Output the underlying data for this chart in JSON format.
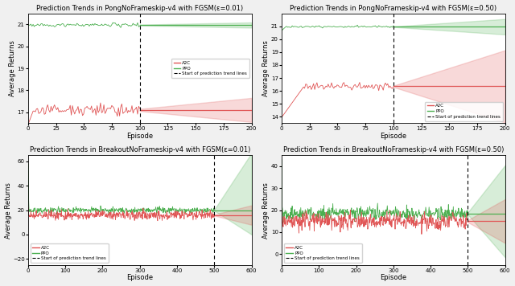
{
  "subplots": [
    {
      "title": "Prediction Trends in PongNoFrameskip-v4 with FGSM(ε=0.01)",
      "xlabel": "Episode",
      "ylabel": "Average Returns",
      "xlim": [
        0,
        200
      ],
      "ylim": [
        16.5,
        21.5
      ],
      "yticks": [
        17,
        18,
        19,
        20,
        21
      ],
      "xticks": [
        0,
        25,
        50,
        75,
        100,
        125,
        150,
        175,
        200
      ],
      "vline": 100,
      "a2c_color": "#e05555",
      "ppo_color": "#4caf50",
      "a2c_mean": 17.1,
      "a2c_noise": 0.15,
      "a2c_seed": 11,
      "a2c_band_start": 0.05,
      "a2c_band_end_up": 0.55,
      "a2c_band_end_down": 0.55,
      "ppo_mean": 20.97,
      "ppo_noise": 0.04,
      "ppo_seed": 21,
      "ppo_band_start": 0.02,
      "ppo_band_end_up": 0.12,
      "ppo_band_end_down": 0.12,
      "a2c_init_low": 16.5,
      "a2c_init_steps": 5,
      "ppo_init_low": null,
      "ppo_init_steps": 0,
      "legend_loc": "center right",
      "legend_bbox": null
    },
    {
      "title": "Prediction Trends in PongNoFrameskip-v4 with FGSM(ε=0.50)",
      "xlabel": "Episode",
      "ylabel": "Average Returns",
      "xlim": [
        0,
        200
      ],
      "ylim": [
        13.5,
        22.0
      ],
      "yticks": [
        14,
        15,
        16,
        17,
        18,
        19,
        20,
        21
      ],
      "xticks": [
        0,
        25,
        50,
        75,
        100,
        125,
        150,
        175,
        200
      ],
      "vline": 100,
      "a2c_color": "#e05555",
      "ppo_color": "#4caf50",
      "a2c_mean": 16.35,
      "a2c_noise": 0.15,
      "a2c_seed": 13,
      "a2c_band_start": 0.05,
      "a2c_band_end_up": 2.8,
      "a2c_band_end_down": 2.8,
      "ppo_mean": 20.97,
      "ppo_noise": 0.04,
      "ppo_seed": 23,
      "ppo_band_start": 0.02,
      "ppo_band_end_up": 0.6,
      "ppo_band_end_down": 0.6,
      "a2c_init_low": 14.0,
      "a2c_init_steps": 20,
      "ppo_init_low": 20.7,
      "ppo_init_steps": 4,
      "legend_loc": "lower right",
      "legend_bbox": null
    },
    {
      "title": "Prediction Trends in BreakoutNoFrameskip-v4 with FGSM(ε=0.01)",
      "xlabel": "Episode",
      "ylabel": "Average Returns",
      "xlim": [
        0,
        600
      ],
      "ylim": [
        -25,
        65
      ],
      "yticks": [
        -20,
        0,
        20,
        40,
        60
      ],
      "xticks": [
        0,
        100,
        200,
        300,
        400,
        500,
        600
      ],
      "vline": 500,
      "a2c_color": "#e05555",
      "ppo_color": "#4caf50",
      "a2c_mean": 16.0,
      "a2c_noise": 1.8,
      "a2c_seed": 31,
      "a2c_band_start": 0.5,
      "a2c_band_end_up": 8.0,
      "a2c_band_end_down": 8.0,
      "ppo_mean": 20.0,
      "ppo_noise": 1.2,
      "ppo_seed": 41,
      "ppo_band_start": 0.5,
      "ppo_band_end_up": 47.0,
      "ppo_band_end_down": 20.0,
      "a2c_init_low": null,
      "a2c_init_steps": 0,
      "ppo_init_spike": 58,
      "ppo_spike_steps": 2,
      "a2c_init_spike": 22,
      "a2c_spike_steps": 2,
      "legend_loc": "lower left",
      "legend_bbox": null
    },
    {
      "title": "Prediction Trends in BreakoutNoFrameskip-v4 with FGSM(ε=0.50)",
      "xlabel": "Episode",
      "ylabel": "Average Returns",
      "xlim": [
        0,
        600
      ],
      "ylim": [
        -5,
        45
      ],
      "yticks": [
        0,
        10,
        20,
        30,
        40
      ],
      "xticks": [
        0,
        100,
        200,
        300,
        400,
        500,
        600
      ],
      "vline": 500,
      "a2c_color": "#e05555",
      "ppo_color": "#4caf50",
      "a2c_mean": 15.0,
      "a2c_noise": 1.8,
      "a2c_seed": 35,
      "a2c_band_start": 0.5,
      "a2c_band_end_up": 10.0,
      "a2c_band_end_down": 10.0,
      "ppo_mean": 18.5,
      "ppo_noise": 1.5,
      "ppo_seed": 45,
      "ppo_band_start": 0.5,
      "ppo_band_end_up": 22.0,
      "ppo_band_end_down": 20.0,
      "a2c_init_low": null,
      "a2c_init_steps": 0,
      "ppo_init_spike": 43,
      "ppo_spike_steps": 3,
      "a2c_init_spike": 20,
      "a2c_spike_steps": 3,
      "legend_loc": "lower left",
      "legend_bbox": null
    }
  ],
  "fig_facecolor": "#f0f0f0",
  "ax_facecolor": "#ffffff"
}
